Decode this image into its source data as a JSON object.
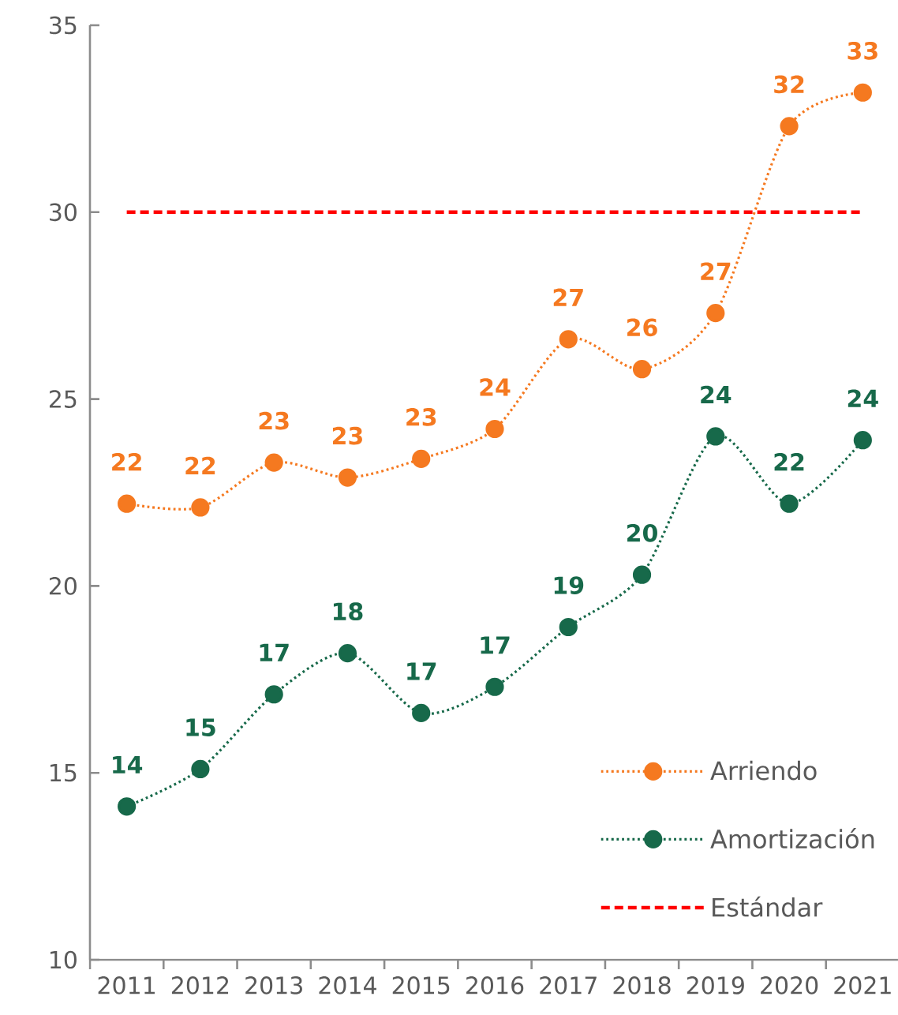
{
  "chart_data": {
    "type": "line",
    "categories": [
      "2011",
      "2012",
      "2013",
      "2014",
      "2015",
      "2016",
      "2017",
      "2018",
      "2019",
      "2020",
      "2021"
    ],
    "ylim": [
      10,
      35
    ],
    "yticks": [
      10,
      15,
      20,
      25,
      30,
      35
    ],
    "marker": "circle",
    "line_style": "dotted",
    "legend": "bottom right",
    "series": [
      {
        "name": "Arriendo",
        "color": "#f57920",
        "values": [
          22.2,
          22.1,
          23.3,
          22.9,
          23.4,
          24.2,
          26.6,
          25.8,
          27.3,
          32.3,
          33.2
        ],
        "value_labels": [
          "22",
          "22",
          "23",
          "23",
          "23",
          "24",
          "27",
          "26",
          "27",
          "32",
          "33"
        ]
      },
      {
        "name": "Amortización",
        "color": "#17694a",
        "values": [
          14.1,
          15.1,
          17.1,
          18.2,
          16.6,
          17.3,
          18.9,
          20.3,
          24.0,
          22.2,
          23.9
        ],
        "value_labels": [
          "14",
          "15",
          "17",
          "18",
          "17",
          "17",
          "19",
          "20",
          "24",
          "22",
          "24"
        ]
      }
    ],
    "ref_lines": [
      {
        "axis": "y",
        "value": 30,
        "label": "Estándar",
        "color": "#ff0000",
        "line_style": "dashed"
      }
    ]
  }
}
